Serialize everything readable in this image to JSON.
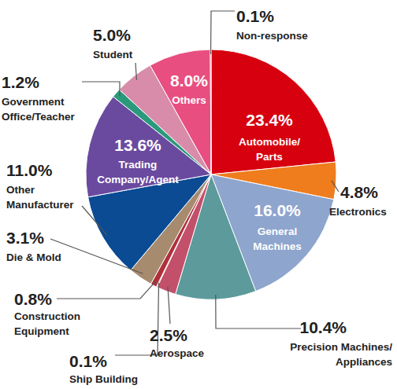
{
  "chart_data": {
    "type": "pie",
    "categories": [
      "Automobile/\nParts",
      "Electronics",
      "General\nMachines",
      "Precision Machines/\nAppliances",
      "Aerospace",
      "Ship Building",
      "Construction\nEquipment",
      "Die & Mold",
      "Other\nManufacturer",
      "Trading\nCompany/Agent",
      "Government\nOffice/Teacher",
      "Student",
      "Others",
      "Non-response"
    ],
    "values": [
      23.4,
      4.8,
      16.0,
      10.4,
      2.5,
      0.1,
      0.8,
      3.1,
      11.0,
      13.6,
      1.2,
      5.0,
      8.0,
      0.1
    ],
    "value_labels": [
      "23.4%",
      "4.8%",
      "16.0%",
      "10.4%",
      "2.5%",
      "0.1%",
      "0.8%",
      "3.1%",
      "11.0%",
      "13.6%",
      "1.2%",
      "5.0%",
      "8.0%",
      "0.1%"
    ],
    "colors": [
      "#d7000f",
      "#ef7d1e",
      "#8ea5cd",
      "#5c9a9b",
      "#c2506b",
      "#d7000f",
      "#b0303a",
      "#a78b6f",
      "#0a4b94",
      "#6a4a9f",
      "#2b9a7c",
      "#d88ca9",
      "#e84e80",
      "#d7000f"
    ],
    "data_labels": true
  }
}
